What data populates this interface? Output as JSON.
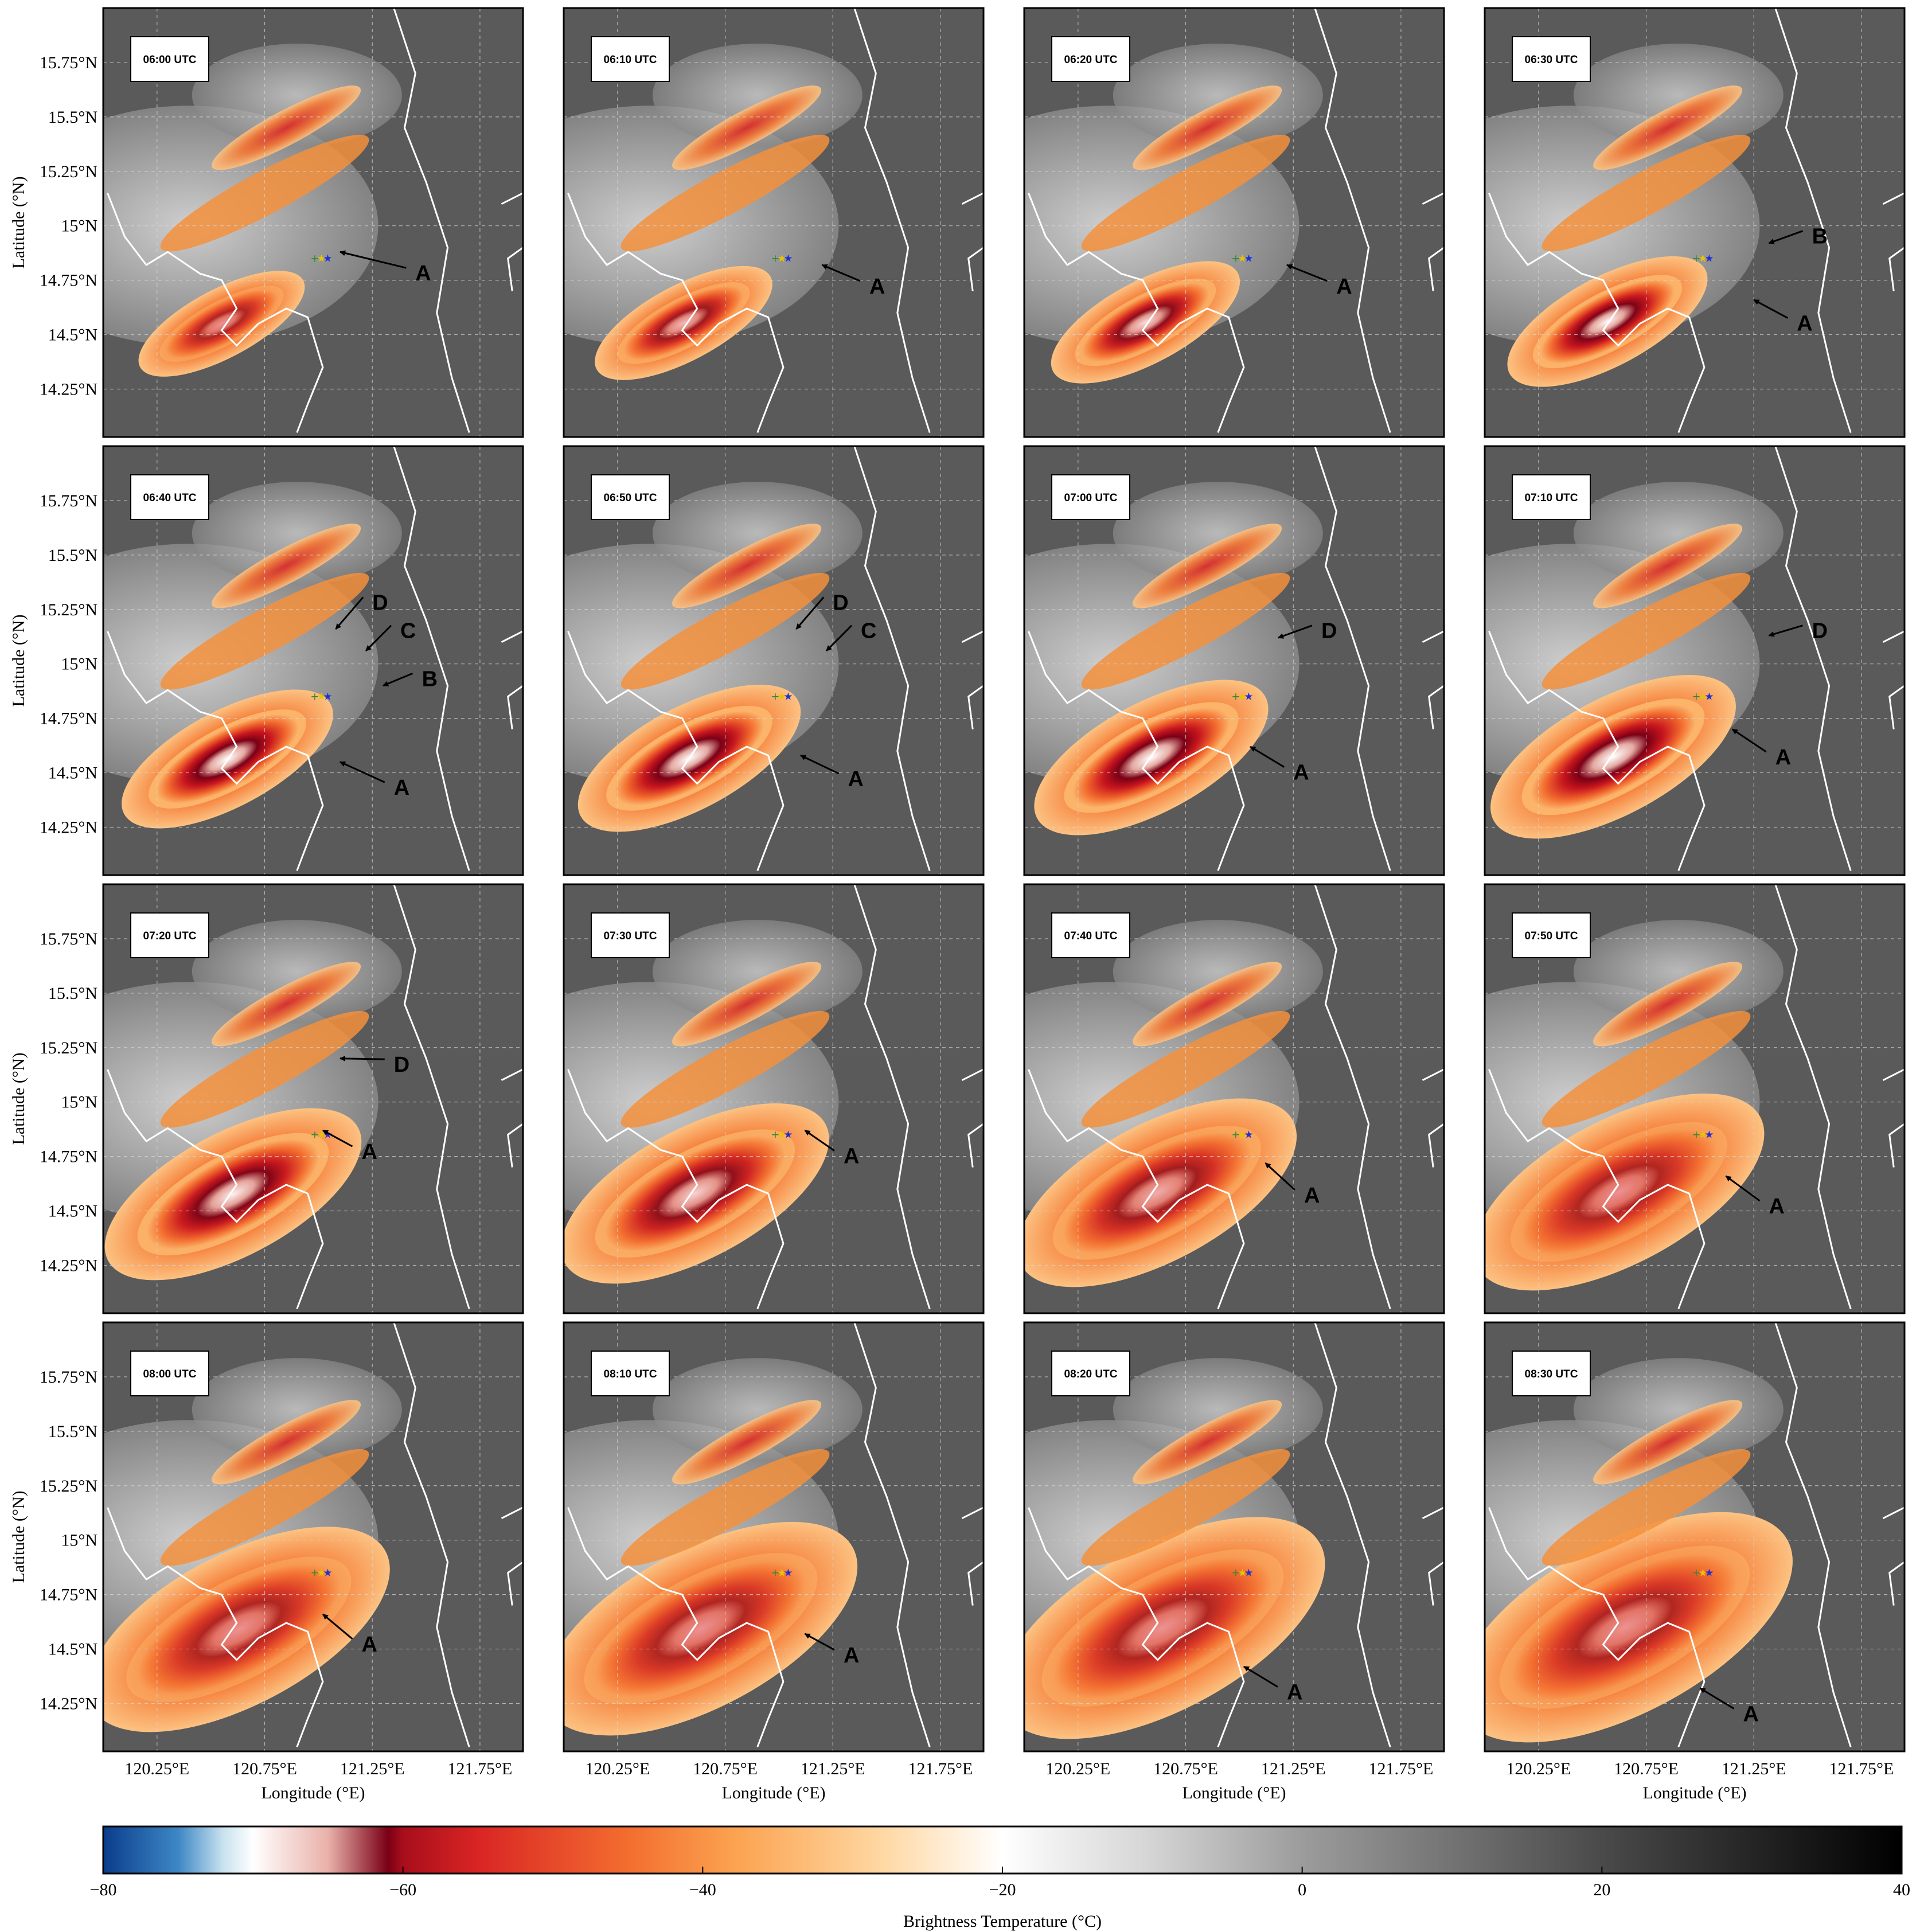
{
  "figure": {
    "panels": [
      {
        "time": "06:00 UTC",
        "labels": [
          {
            "text": "A",
            "tx": 121.45,
            "ty": 14.78,
            "ax": 121.1,
            "ay": 14.88
          }
        ]
      },
      {
        "time": "06:10 UTC",
        "labels": [
          {
            "text": "A",
            "tx": 121.42,
            "ty": 14.72,
            "ax": 121.2,
            "ay": 14.82
          }
        ]
      },
      {
        "time": "06:20 UTC",
        "labels": [
          {
            "text": "A",
            "tx": 121.45,
            "ty": 14.72,
            "ax": 121.22,
            "ay": 14.82
          }
        ]
      },
      {
        "time": "06:30 UTC",
        "labels": [
          {
            "text": "B",
            "tx": 121.52,
            "ty": 14.95,
            "ax": 121.32,
            "ay": 14.92
          },
          {
            "text": "A",
            "tx": 121.45,
            "ty": 14.55,
            "ax": 121.25,
            "ay": 14.66
          }
        ]
      },
      {
        "time": "06:40 UTC",
        "labels": [
          {
            "text": "D",
            "tx": 121.25,
            "ty": 15.28,
            "ax": 121.08,
            "ay": 15.16
          },
          {
            "text": "C",
            "tx": 121.38,
            "ty": 15.15,
            "ax": 121.22,
            "ay": 15.06
          },
          {
            "text": "B",
            "tx": 121.48,
            "ty": 14.93,
            "ax": 121.3,
            "ay": 14.9
          },
          {
            "text": "A",
            "tx": 121.35,
            "ty": 14.43,
            "ax": 121.1,
            "ay": 14.55
          }
        ]
      },
      {
        "time": "06:50 UTC",
        "labels": [
          {
            "text": "D",
            "tx": 121.25,
            "ty": 15.28,
            "ax": 121.08,
            "ay": 15.16
          },
          {
            "text": "C",
            "tx": 121.38,
            "ty": 15.15,
            "ax": 121.22,
            "ay": 15.06
          },
          {
            "text": "A",
            "tx": 121.32,
            "ty": 14.47,
            "ax": 121.1,
            "ay": 14.58
          }
        ]
      },
      {
        "time": "07:00 UTC",
        "labels": [
          {
            "text": "D",
            "tx": 121.38,
            "ty": 15.15,
            "ax": 121.18,
            "ay": 15.12
          },
          {
            "text": "A",
            "tx": 121.25,
            "ty": 14.5,
            "ax": 121.05,
            "ay": 14.62
          }
        ]
      },
      {
        "time": "07:10 UTC",
        "labels": [
          {
            "text": "D",
            "tx": 121.52,
            "ty": 15.15,
            "ax": 121.32,
            "ay": 15.13
          },
          {
            "text": "A",
            "tx": 121.35,
            "ty": 14.57,
            "ax": 121.15,
            "ay": 14.7
          }
        ]
      },
      {
        "time": "07:20 UTC",
        "labels": [
          {
            "text": "D",
            "tx": 121.35,
            "ty": 15.17,
            "ax": 121.1,
            "ay": 15.2
          },
          {
            "text": "A",
            "tx": 121.2,
            "ty": 14.77,
            "ax": 121.02,
            "ay": 14.87
          }
        ]
      },
      {
        "time": "07:30 UTC",
        "labels": [
          {
            "text": "A",
            "tx": 121.3,
            "ty": 14.75,
            "ax": 121.12,
            "ay": 14.87
          }
        ]
      },
      {
        "time": "07:40 UTC",
        "labels": [
          {
            "text": "A",
            "tx": 121.3,
            "ty": 14.57,
            "ax": 121.12,
            "ay": 14.72
          }
        ]
      },
      {
        "time": "07:50 UTC",
        "labels": [
          {
            "text": "A",
            "tx": 121.32,
            "ty": 14.52,
            "ax": 121.12,
            "ay": 14.66
          }
        ]
      },
      {
        "time": "08:00 UTC",
        "labels": [
          {
            "text": "A",
            "tx": 121.2,
            "ty": 14.52,
            "ax": 121.02,
            "ay": 14.66
          }
        ]
      },
      {
        "time": "08:10 UTC",
        "labels": [
          {
            "text": "A",
            "tx": 121.3,
            "ty": 14.47,
            "ax": 121.12,
            "ay": 14.57
          }
        ]
      },
      {
        "time": "08:20 UTC",
        "labels": [
          {
            "text": "A",
            "tx": 121.22,
            "ty": 14.3,
            "ax": 121.02,
            "ay": 14.42
          }
        ]
      },
      {
        "time": "08:30 UTC",
        "labels": [
          {
            "text": "A",
            "tx": 121.2,
            "ty": 14.2,
            "ax": 121.0,
            "ay": 14.32
          }
        ]
      }
    ],
    "lat_ticks": [
      "14.25°N",
      "14.5°N",
      "14.75°N",
      "15°N",
      "15.25°N",
      "15.5°N",
      "15.75°N"
    ],
    "lat_values": [
      14.25,
      14.5,
      14.75,
      15.0,
      15.25,
      15.5,
      15.75
    ],
    "lon_ticks": [
      "120.25°E",
      "120.75°E",
      "121.25°E",
      "121.75°E"
    ],
    "lon_values": [
      120.25,
      120.75,
      121.25,
      121.75
    ],
    "lon_range": [
      120.0,
      121.95
    ],
    "lat_range": [
      14.03,
      16.0
    ],
    "ylabel": "Latitude (°N)",
    "xlabel": "Longitude (°E)",
    "station_markers": {
      "lon": 121.0,
      "lat": 14.85,
      "colors": [
        "#2e8b2e",
        "#e8c400",
        "#1d2fd6"
      ]
    }
  },
  "colorbar": {
    "label": "Brightness Temperature (°C)",
    "min": -80,
    "max": 40,
    "tick_labels": [
      "−80",
      "−60",
      "−40",
      "−20",
      "0",
      "20",
      "40"
    ],
    "tick_values": [
      -80,
      -60,
      -40,
      -20,
      0,
      20,
      40
    ],
    "colors": {
      "-80": "#0b3d8c",
      "-75": "#3d87c5",
      "-72": "#c8e2ef",
      "-70": "#ffffff",
      "-65": "#e9b1a9",
      "-61": "#7a0016",
      "-60": "#a80e1c",
      "-55": "#d92524",
      "-45": "#f36d2f",
      "-38": "#fba24f",
      "-28": "#ffd8a3",
      "-20": "#ffffff",
      "-10": "#d4d4d4",
      "0": "#9c9c9c",
      "20": "#4a4a4a",
      "40": "#000000"
    }
  },
  "colors": {
    "background_warm": "#5a5a5a",
    "coastline": "#ffffff",
    "gridline": "#d9d9d9",
    "annotation_arrow": "#000000"
  }
}
